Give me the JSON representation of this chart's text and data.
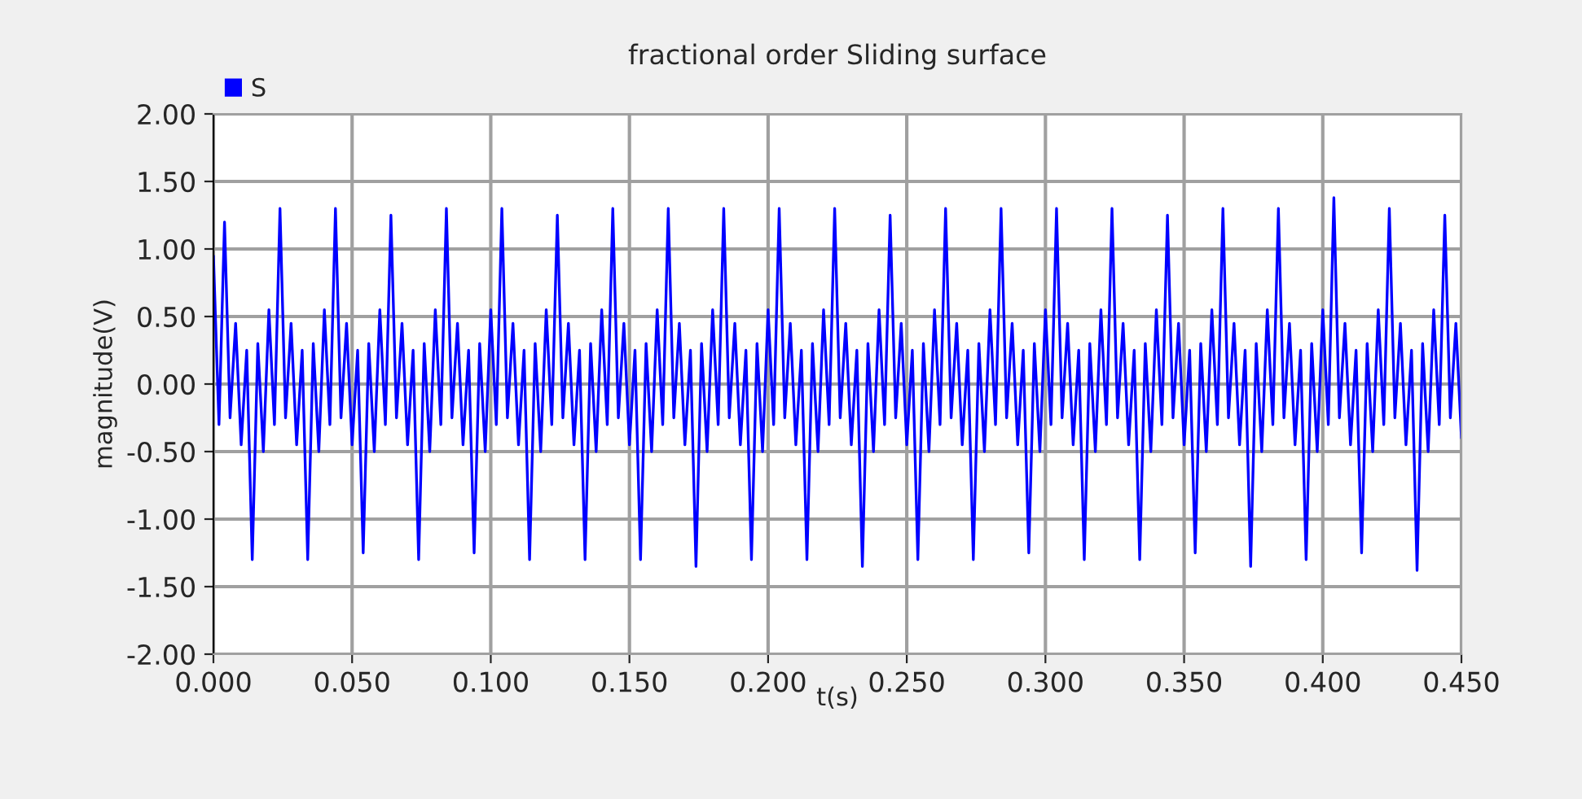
{
  "chart_data": {
    "type": "line",
    "title": "fractional order Sliding surface",
    "xlabel": "t(s)",
    "ylabel": "magnitude(V)",
    "xlim": [
      0,
      0.45
    ],
    "ylim": [
      -2,
      2
    ],
    "xticks": [
      {
        "value": 0,
        "label": "0.000"
      },
      {
        "value": 0.05,
        "label": "0.050"
      },
      {
        "value": 0.1,
        "label": "0.100"
      },
      {
        "value": 0.15,
        "label": "0.150"
      },
      {
        "value": 0.2,
        "label": "0.200"
      },
      {
        "value": 0.25,
        "label": "0.250"
      },
      {
        "value": 0.3,
        "label": "0.300"
      },
      {
        "value": 0.35,
        "label": "0.350"
      },
      {
        "value": 0.4,
        "label": "0.400"
      },
      {
        "value": 0.45,
        "label": "0.450"
      }
    ],
    "yticks": [
      {
        "value": 2,
        "label": "2.00"
      },
      {
        "value": 1.5,
        "label": "1.50"
      },
      {
        "value": 1,
        "label": "1.00"
      },
      {
        "value": 0.5,
        "label": "0.50"
      },
      {
        "value": 0,
        "label": "0.00"
      },
      {
        "value": -0.5,
        "label": "-0.50"
      },
      {
        "value": -1,
        "label": "-1.00"
      },
      {
        "value": -1.5,
        "label": "-1.50"
      },
      {
        "value": -2,
        "label": "-2.00"
      }
    ],
    "grid": true,
    "legend": "top left",
    "marker": "none",
    "line_style": "solid",
    "x": [
      0.0,
      0.002,
      0.004,
      0.006,
      0.008,
      0.01,
      0.012,
      0.014,
      0.016,
      0.018,
      0.02,
      0.022,
      0.024,
      0.026,
      0.028,
      0.03,
      0.032,
      0.034,
      0.036,
      0.038,
      0.04,
      0.042,
      0.044,
      0.046,
      0.048,
      0.05,
      0.052,
      0.054,
      0.056,
      0.058,
      0.06,
      0.062,
      0.064,
      0.066,
      0.068,
      0.07,
      0.072,
      0.074,
      0.076,
      0.078,
      0.08,
      0.082,
      0.084,
      0.086,
      0.088,
      0.09,
      0.092,
      0.094,
      0.096,
      0.098,
      0.1,
      0.102,
      0.104,
      0.106,
      0.108,
      0.11,
      0.112,
      0.114,
      0.116,
      0.118,
      0.12,
      0.122,
      0.124,
      0.126,
      0.128,
      0.13,
      0.132,
      0.134,
      0.136,
      0.138,
      0.14,
      0.142,
      0.144,
      0.146,
      0.148,
      0.15,
      0.152,
      0.154,
      0.156,
      0.158,
      0.16,
      0.162,
      0.164,
      0.166,
      0.168,
      0.17,
      0.172,
      0.174,
      0.176,
      0.178,
      0.18,
      0.182,
      0.184,
      0.186,
      0.188,
      0.19,
      0.192,
      0.194,
      0.196,
      0.198,
      0.2,
      0.202,
      0.204,
      0.206,
      0.208,
      0.21,
      0.212,
      0.214,
      0.216,
      0.218,
      0.22,
      0.222,
      0.224,
      0.226,
      0.228,
      0.23,
      0.232,
      0.234,
      0.236,
      0.238,
      0.24,
      0.242,
      0.244,
      0.246,
      0.248,
      0.25,
      0.252,
      0.254,
      0.256,
      0.258,
      0.26,
      0.262,
      0.264,
      0.266,
      0.268,
      0.27,
      0.272,
      0.274,
      0.276,
      0.278,
      0.28,
      0.282,
      0.284,
      0.286,
      0.288,
      0.29,
      0.292,
      0.294,
      0.296,
      0.298,
      0.3,
      0.302,
      0.304,
      0.306,
      0.308,
      0.31,
      0.312,
      0.314,
      0.316,
      0.318,
      0.32,
      0.322,
      0.324,
      0.326,
      0.328,
      0.33,
      0.332,
      0.334,
      0.336,
      0.338,
      0.34,
      0.342,
      0.344,
      0.346,
      0.348,
      0.35,
      0.352,
      0.354,
      0.356,
      0.358,
      0.36,
      0.362,
      0.364,
      0.366,
      0.368,
      0.37,
      0.372,
      0.374,
      0.376,
      0.378,
      0.38,
      0.382,
      0.384,
      0.386,
      0.388,
      0.39,
      0.392,
      0.394,
      0.396,
      0.398,
      0.4,
      0.402,
      0.404,
      0.406,
      0.408,
      0.41,
      0.412,
      0.414,
      0.416,
      0.418,
      0.42,
      0.422,
      0.424,
      0.426,
      0.428,
      0.43,
      0.432,
      0.434,
      0.436,
      0.438,
      0.44,
      0.442,
      0.444,
      0.446,
      0.448,
      0.45
    ],
    "series": [
      {
        "name": "S",
        "color": "#0000ff",
        "values": [
          0.95,
          -0.3,
          1.2,
          -0.25,
          0.45,
          -0.45,
          0.25,
          -1.3,
          0.3,
          -0.5,
          0.55,
          -0.3,
          1.3,
          -0.25,
          0.45,
          -0.45,
          0.25,
          -1.3,
          0.3,
          -0.5,
          0.55,
          -0.3,
          1.3,
          -0.25,
          0.45,
          -0.45,
          0.25,
          -1.25,
          0.3,
          -0.5,
          0.55,
          -0.3,
          1.25,
          -0.25,
          0.45,
          -0.45,
          0.25,
          -1.3,
          0.3,
          -0.5,
          0.55,
          -0.3,
          1.3,
          -0.25,
          0.45,
          -0.45,
          0.25,
          -1.25,
          0.3,
          -0.5,
          0.55,
          -0.3,
          1.3,
          -0.25,
          0.45,
          -0.45,
          0.25,
          -1.3,
          0.3,
          -0.5,
          0.55,
          -0.3,
          1.25,
          -0.25,
          0.45,
          -0.45,
          0.25,
          -1.3,
          0.3,
          -0.5,
          0.55,
          -0.3,
          1.3,
          -0.25,
          0.45,
          -0.45,
          0.25,
          -1.3,
          0.3,
          -0.5,
          0.55,
          -0.3,
          1.3,
          -0.25,
          0.45,
          -0.45,
          0.25,
          -1.35,
          0.3,
          -0.5,
          0.55,
          -0.3,
          1.3,
          -0.25,
          0.45,
          -0.45,
          0.25,
          -1.3,
          0.3,
          -0.5,
          0.55,
          -0.3,
          1.3,
          -0.25,
          0.45,
          -0.45,
          0.25,
          -1.3,
          0.3,
          -0.5,
          0.55,
          -0.3,
          1.3,
          -0.25,
          0.45,
          -0.45,
          0.25,
          -1.35,
          0.3,
          -0.5,
          0.55,
          -0.3,
          1.25,
          -0.25,
          0.45,
          -0.45,
          0.25,
          -1.3,
          0.3,
          -0.5,
          0.55,
          -0.3,
          1.3,
          -0.25,
          0.45,
          -0.45,
          0.25,
          -1.3,
          0.3,
          -0.5,
          0.55,
          -0.3,
          1.3,
          -0.25,
          0.45,
          -0.45,
          0.25,
          -1.25,
          0.3,
          -0.5,
          0.55,
          -0.3,
          1.3,
          -0.25,
          0.45,
          -0.45,
          0.25,
          -1.3,
          0.3,
          -0.5,
          0.55,
          -0.3,
          1.3,
          -0.25,
          0.45,
          -0.45,
          0.25,
          -1.3,
          0.3,
          -0.5,
          0.55,
          -0.3,
          1.25,
          -0.25,
          0.45,
          -0.45,
          0.25,
          -1.25,
          0.3,
          -0.5,
          0.55,
          -0.3,
          1.3,
          -0.25,
          0.45,
          -0.45,
          0.25,
          -1.35,
          0.3,
          -0.5,
          0.55,
          -0.3,
          1.3,
          -0.25,
          0.45,
          -0.45,
          0.25,
          -1.3,
          0.3,
          -0.5,
          0.55,
          -0.3,
          1.38,
          -0.25,
          0.45,
          -0.45,
          0.25,
          -1.25,
          0.3,
          -0.5,
          0.55,
          -0.3,
          1.3,
          -0.25,
          0.45,
          -0.45,
          0.25,
          -1.38,
          0.3,
          -0.5,
          0.55,
          -0.3,
          1.25,
          -0.25,
          0.45,
          -0.4
        ]
      }
    ]
  }
}
